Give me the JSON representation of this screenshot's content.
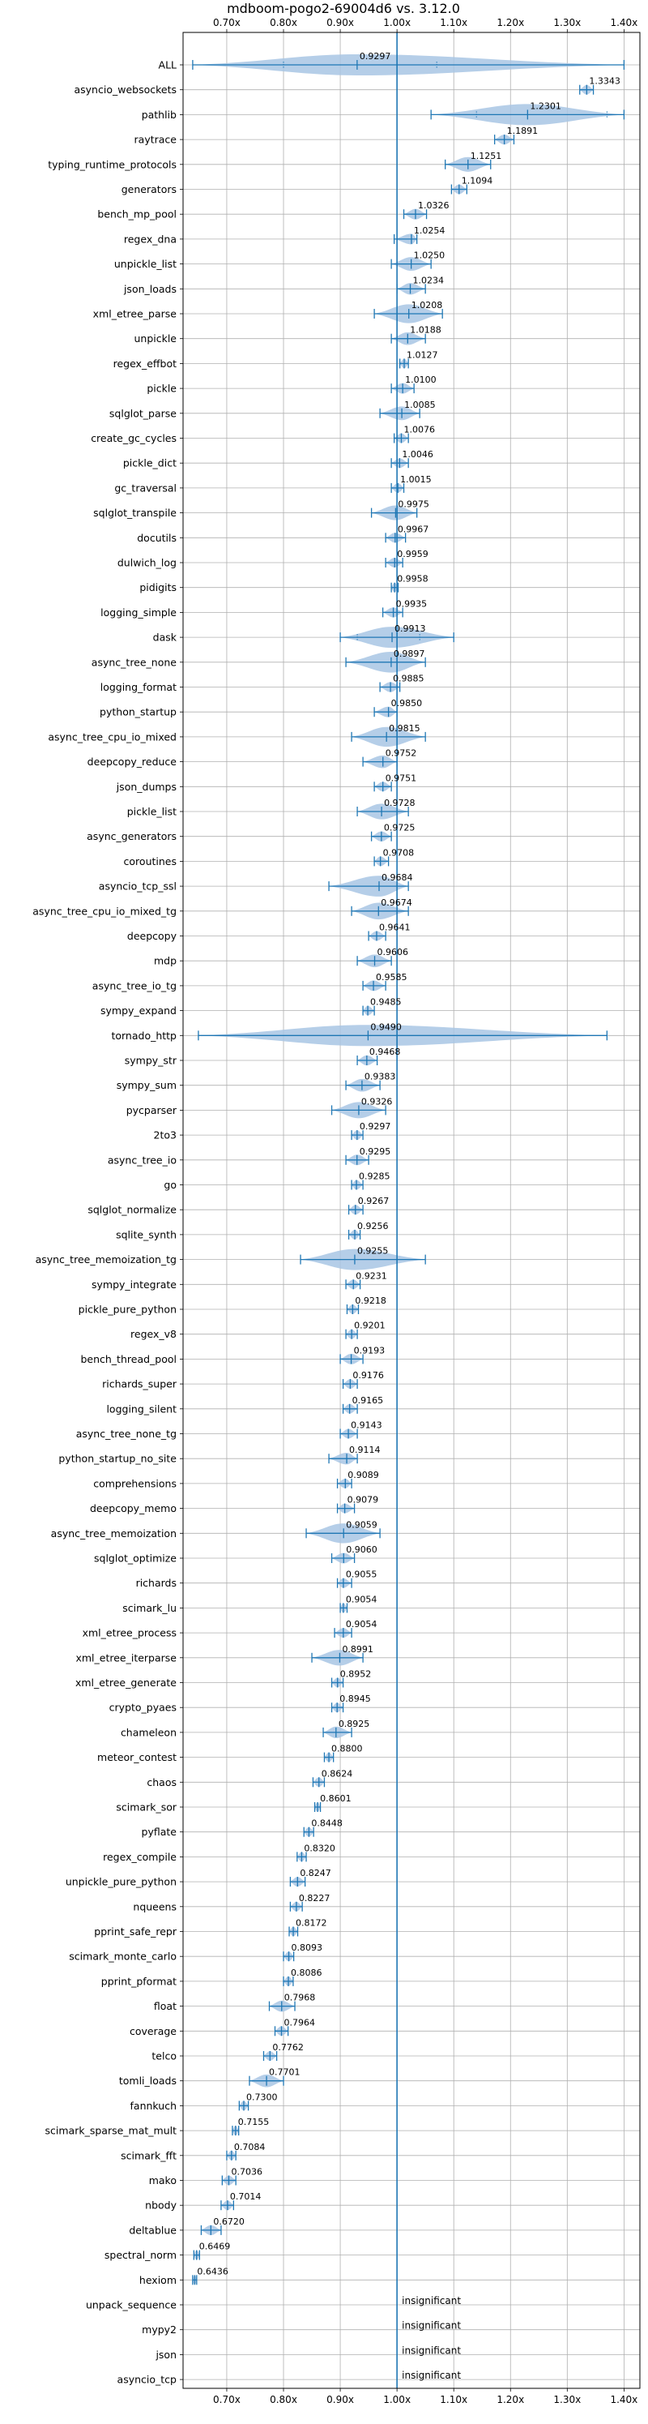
{
  "chart_data": {
    "type": "violin",
    "title": "mdboom-pogo2-69004d6 vs. 3.12.0",
    "xlim": [
      0.623,
      1.428
    ],
    "x_ticks": [
      0.7,
      0.8,
      0.9,
      1.0,
      1.1,
      1.2,
      1.3,
      1.4
    ],
    "x_tick_labels": [
      "0.70x",
      "0.80x",
      "0.90x",
      "1.00x",
      "1.10x",
      "1.20x",
      "1.30x",
      "1.40x"
    ],
    "x_tick_label_positions": [
      "top",
      "bottom"
    ],
    "reference_line": 1.0,
    "grid": true,
    "colors": {
      "violin": "#a8c6e4",
      "line": "#1f77b4",
      "grid": "#b0b0b0"
    },
    "benchmarks": [
      {
        "name": "ALL",
        "median": 0.9297,
        "label": "0.9297",
        "min": 0.64,
        "max": 1.4,
        "p5": 0.8,
        "p95": 1.07
      },
      {
        "name": "asyncio_websockets",
        "median": 1.3343,
        "label": "1.3343",
        "min": 1.322,
        "max": 1.346
      },
      {
        "name": "pathlib",
        "median": 1.2301,
        "label": "1.2301",
        "min": 1.06,
        "max": 1.4,
        "p5": 1.14,
        "p95": 1.37
      },
      {
        "name": "raytrace",
        "median": 1.1891,
        "label": "1.1891",
        "min": 1.172,
        "max": 1.206
      },
      {
        "name": "typing_runtime_protocols",
        "median": 1.1251,
        "label": "1.1251",
        "min": 1.085,
        "max": 1.165
      },
      {
        "name": "generators",
        "median": 1.1094,
        "label": "1.1094",
        "min": 1.096,
        "max": 1.123
      },
      {
        "name": "bench_mp_pool",
        "median": 1.0326,
        "label": "1.0326",
        "min": 1.012,
        "max": 1.052
      },
      {
        "name": "regex_dna",
        "median": 1.0254,
        "label": "1.0254",
        "min": 0.995,
        "max": 1.035
      },
      {
        "name": "unpickle_list",
        "median": 1.025,
        "label": "1.0250",
        "min": 0.99,
        "max": 1.06
      },
      {
        "name": "json_loads",
        "median": 1.0234,
        "label": "1.0234",
        "min": 1.0,
        "max": 1.05
      },
      {
        "name": "xml_etree_parse",
        "median": 1.0208,
        "label": "1.0208",
        "min": 0.96,
        "max": 1.08
      },
      {
        "name": "unpickle",
        "median": 1.0188,
        "label": "1.0188",
        "min": 0.99,
        "max": 1.05
      },
      {
        "name": "regex_effbot",
        "median": 1.0127,
        "label": "1.0127",
        "min": 1.005,
        "max": 1.02
      },
      {
        "name": "pickle",
        "median": 1.01,
        "label": "1.0100",
        "min": 0.99,
        "max": 1.03
      },
      {
        "name": "sqlglot_parse",
        "median": 1.0085,
        "label": "1.0085",
        "min": 0.97,
        "max": 1.04
      },
      {
        "name": "create_gc_cycles",
        "median": 1.0076,
        "label": "1.0076",
        "min": 0.995,
        "max": 1.02
      },
      {
        "name": "pickle_dict",
        "median": 1.0046,
        "label": "1.0046",
        "min": 0.99,
        "max": 1.02
      },
      {
        "name": "gc_traversal",
        "median": 1.0015,
        "label": "1.0015",
        "min": 0.99,
        "max": 1.012
      },
      {
        "name": "sqlglot_transpile",
        "median": 0.9975,
        "label": "0.9975",
        "min": 0.955,
        "max": 1.035
      },
      {
        "name": "docutils",
        "median": 0.9967,
        "label": "0.9967",
        "min": 0.98,
        "max": 1.015
      },
      {
        "name": "dulwich_log",
        "median": 0.9959,
        "label": "0.9959",
        "min": 0.98,
        "max": 1.01
      },
      {
        "name": "pidigits",
        "median": 0.9958,
        "label": "0.9958",
        "min": 0.99,
        "max": 1.002
      },
      {
        "name": "logging_simple",
        "median": 0.9935,
        "label": "0.9935",
        "min": 0.975,
        "max": 1.01
      },
      {
        "name": "dask",
        "median": 0.9913,
        "label": "0.9913",
        "min": 0.9,
        "max": 1.1,
        "p5": 0.93,
        "p95": 1.04
      },
      {
        "name": "async_tree_none",
        "median": 0.9897,
        "label": "0.9897",
        "min": 0.91,
        "max": 1.05
      },
      {
        "name": "logging_format",
        "median": 0.9885,
        "label": "0.9885",
        "min": 0.97,
        "max": 1.005
      },
      {
        "name": "python_startup",
        "median": 0.985,
        "label": "0.9850",
        "min": 0.96,
        "max": 1.0
      },
      {
        "name": "async_tree_cpu_io_mixed",
        "median": 0.9815,
        "label": "0.9815",
        "min": 0.92,
        "max": 1.05
      },
      {
        "name": "deepcopy_reduce",
        "median": 0.9752,
        "label": "0.9752",
        "min": 0.94,
        "max": 1.0
      },
      {
        "name": "json_dumps",
        "median": 0.9751,
        "label": "0.9751",
        "min": 0.96,
        "max": 0.99
      },
      {
        "name": "pickle_list",
        "median": 0.9728,
        "label": "0.9728",
        "min": 0.93,
        "max": 1.02
      },
      {
        "name": "async_generators",
        "median": 0.9725,
        "label": "0.9725",
        "min": 0.955,
        "max": 0.99
      },
      {
        "name": "coroutines",
        "median": 0.9708,
        "label": "0.9708",
        "min": 0.96,
        "max": 0.985
      },
      {
        "name": "asyncio_tcp_ssl",
        "median": 0.9684,
        "label": "0.9684",
        "min": 0.88,
        "max": 1.02
      },
      {
        "name": "async_tree_cpu_io_mixed_tg",
        "median": 0.9674,
        "label": "0.9674",
        "min": 0.92,
        "max": 1.02
      },
      {
        "name": "deepcopy",
        "median": 0.9641,
        "label": "0.9641",
        "min": 0.95,
        "max": 0.98
      },
      {
        "name": "mdp",
        "median": 0.9606,
        "label": "0.9606",
        "min": 0.93,
        "max": 0.99
      },
      {
        "name": "async_tree_io_tg",
        "median": 0.9585,
        "label": "0.9585",
        "min": 0.94,
        "max": 0.98
      },
      {
        "name": "sympy_expand",
        "median": 0.9485,
        "label": "0.9485",
        "min": 0.94,
        "max": 0.96
      },
      {
        "name": "tornado_http",
        "median": 0.949,
        "label": "0.9490",
        "min": 0.65,
        "max": 1.37
      },
      {
        "name": "sympy_str",
        "median": 0.9468,
        "label": "0.9468",
        "min": 0.93,
        "max": 0.965
      },
      {
        "name": "sympy_sum",
        "median": 0.9383,
        "label": "0.9383",
        "min": 0.91,
        "max": 0.97
      },
      {
        "name": "pycparser",
        "median": 0.9326,
        "label": "0.9326",
        "min": 0.885,
        "max": 0.98
      },
      {
        "name": "2to3",
        "median": 0.9297,
        "label": "0.9297",
        "min": 0.92,
        "max": 0.94
      },
      {
        "name": "async_tree_io",
        "median": 0.9295,
        "label": "0.9295",
        "min": 0.91,
        "max": 0.95
      },
      {
        "name": "go",
        "median": 0.9285,
        "label": "0.9285",
        "min": 0.92,
        "max": 0.94
      },
      {
        "name": "sqlglot_normalize",
        "median": 0.9267,
        "label": "0.9267",
        "min": 0.915,
        "max": 0.94
      },
      {
        "name": "sqlite_synth",
        "median": 0.9256,
        "label": "0.9256",
        "min": 0.915,
        "max": 0.935
      },
      {
        "name": "async_tree_memoization_tg",
        "median": 0.9255,
        "label": "0.9255",
        "min": 0.83,
        "max": 1.05
      },
      {
        "name": "sympy_integrate",
        "median": 0.9231,
        "label": "0.9231",
        "min": 0.91,
        "max": 0.935
      },
      {
        "name": "pickle_pure_python",
        "median": 0.9218,
        "label": "0.9218",
        "min": 0.912,
        "max": 0.932
      },
      {
        "name": "regex_v8",
        "median": 0.9201,
        "label": "0.9201",
        "min": 0.91,
        "max": 0.93
      },
      {
        "name": "bench_thread_pool",
        "median": 0.9193,
        "label": "0.9193",
        "min": 0.9,
        "max": 0.94
      },
      {
        "name": "richards_super",
        "median": 0.9176,
        "label": "0.9176",
        "min": 0.905,
        "max": 0.93
      },
      {
        "name": "logging_silent",
        "median": 0.9165,
        "label": "0.9165",
        "min": 0.905,
        "max": 0.93
      },
      {
        "name": "async_tree_none_tg",
        "median": 0.9143,
        "label": "0.9143",
        "min": 0.9,
        "max": 0.93
      },
      {
        "name": "python_startup_no_site",
        "median": 0.9114,
        "label": "0.9114",
        "min": 0.88,
        "max": 0.93
      },
      {
        "name": "comprehensions",
        "median": 0.9089,
        "label": "0.9089",
        "min": 0.895,
        "max": 0.92
      },
      {
        "name": "deepcopy_memo",
        "median": 0.9079,
        "label": "0.9079",
        "min": 0.895,
        "max": 0.925
      },
      {
        "name": "async_tree_memoization",
        "median": 0.9059,
        "label": "0.9059",
        "min": 0.84,
        "max": 0.97
      },
      {
        "name": "sqlglot_optimize",
        "median": 0.906,
        "label": "0.9060",
        "min": 0.885,
        "max": 0.925
      },
      {
        "name": "richards",
        "median": 0.9055,
        "label": "0.9055",
        "min": 0.895,
        "max": 0.92
      },
      {
        "name": "scimark_lu",
        "median": 0.9054,
        "label": "0.9054",
        "min": 0.9,
        "max": 0.912
      },
      {
        "name": "xml_etree_process",
        "median": 0.9054,
        "label": "0.9054",
        "min": 0.89,
        "max": 0.92
      },
      {
        "name": "xml_etree_iterparse",
        "median": 0.8991,
        "label": "0.8991",
        "min": 0.85,
        "max": 0.94
      },
      {
        "name": "xml_etree_generate",
        "median": 0.8952,
        "label": "0.8952",
        "min": 0.885,
        "max": 0.905
      },
      {
        "name": "crypto_pyaes",
        "median": 0.8945,
        "label": "0.8945",
        "min": 0.885,
        "max": 0.905
      },
      {
        "name": "chameleon",
        "median": 0.8925,
        "label": "0.8925",
        "min": 0.87,
        "max": 0.92
      },
      {
        "name": "meteor_contest",
        "median": 0.88,
        "label": "0.8800",
        "min": 0.872,
        "max": 0.888
      },
      {
        "name": "chaos",
        "median": 0.8624,
        "label": "0.8624",
        "min": 0.852,
        "max": 0.872
      },
      {
        "name": "scimark_sor",
        "median": 0.8601,
        "label": "0.8601",
        "min": 0.855,
        "max": 0.865
      },
      {
        "name": "pyflate",
        "median": 0.8448,
        "label": "0.8448",
        "min": 0.836,
        "max": 0.853
      },
      {
        "name": "regex_compile",
        "median": 0.832,
        "label": "0.8320",
        "min": 0.824,
        "max": 0.84
      },
      {
        "name": "unpickle_pure_python",
        "median": 0.8247,
        "label": "0.8247",
        "min": 0.812,
        "max": 0.838
      },
      {
        "name": "nqueens",
        "median": 0.8227,
        "label": "0.8227",
        "min": 0.812,
        "max": 0.833
      },
      {
        "name": "pprint_safe_repr",
        "median": 0.8172,
        "label": "0.8172",
        "min": 0.81,
        "max": 0.825
      },
      {
        "name": "scimark_monte_carlo",
        "median": 0.8093,
        "label": "0.8093",
        "min": 0.8,
        "max": 0.818
      },
      {
        "name": "pprint_pformat",
        "median": 0.8086,
        "label": "0.8086",
        "min": 0.8,
        "max": 0.817
      },
      {
        "name": "float",
        "median": 0.7968,
        "label": "0.7968",
        "min": 0.775,
        "max": 0.82
      },
      {
        "name": "coverage",
        "median": 0.7964,
        "label": "0.7964",
        "min": 0.785,
        "max": 0.808
      },
      {
        "name": "telco",
        "median": 0.7762,
        "label": "0.7762",
        "min": 0.765,
        "max": 0.788
      },
      {
        "name": "tomli_loads",
        "median": 0.7701,
        "label": "0.7701",
        "min": 0.74,
        "max": 0.8
      },
      {
        "name": "fannkuch",
        "median": 0.73,
        "label": "0.7300",
        "min": 0.722,
        "max": 0.738
      },
      {
        "name": "scimark_sparse_mat_mult",
        "median": 0.7155,
        "label": "0.7155",
        "min": 0.71,
        "max": 0.721
      },
      {
        "name": "scimark_fft",
        "median": 0.7084,
        "label": "0.7084",
        "min": 0.7,
        "max": 0.716
      },
      {
        "name": "mako",
        "median": 0.7036,
        "label": "0.7036",
        "min": 0.692,
        "max": 0.716
      },
      {
        "name": "nbody",
        "median": 0.7014,
        "label": "0.7014",
        "min": 0.69,
        "max": 0.712
      },
      {
        "name": "deltablue",
        "median": 0.672,
        "label": "0.6720",
        "min": 0.655,
        "max": 0.69
      },
      {
        "name": "spectral_norm",
        "median": 0.6469,
        "label": "0.6469",
        "min": 0.642,
        "max": 0.652
      },
      {
        "name": "hexiom",
        "median": 0.6436,
        "label": "0.6436",
        "min": 0.64,
        "max": 0.647
      },
      {
        "name": "unpack_sequence",
        "insignificant": true,
        "label": "insignificant"
      },
      {
        "name": "mypy2",
        "insignificant": true,
        "label": "insignificant"
      },
      {
        "name": "json",
        "insignificant": true,
        "label": "insignificant"
      },
      {
        "name": "asyncio_tcp",
        "insignificant": true,
        "label": "insignificant"
      }
    ]
  }
}
